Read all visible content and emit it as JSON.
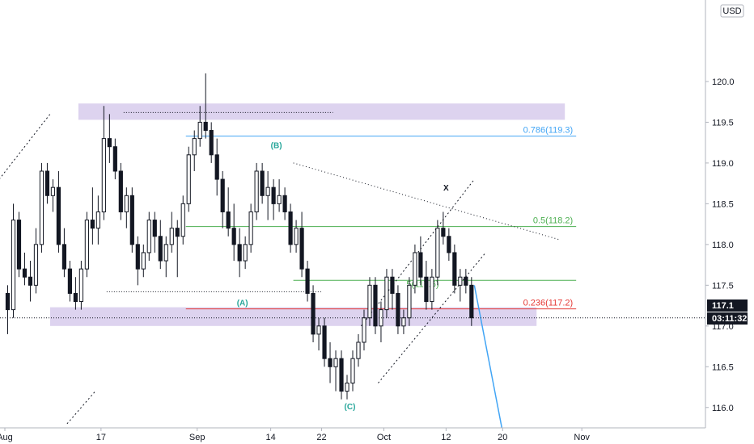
{
  "chart_data": {
    "type": "candlestick",
    "currency": "USD",
    "ylim": [
      115.75,
      121.0
    ],
    "xlim": [
      0,
      123
    ],
    "y_ticks": [
      "120.0",
      "119.5",
      "119.0",
      "118.5",
      "118.0",
      "117.5",
      "117.0",
      "116.5",
      "116.0"
    ],
    "y_tick_values": [
      120.0,
      119.5,
      119.0,
      118.5,
      118.0,
      117.5,
      117.0,
      116.5,
      116.0
    ],
    "x_ticks": [
      {
        "label": "Aug",
        "x": 0
      },
      {
        "label": "17",
        "x": 17
      },
      {
        "label": "Sep",
        "x": 34
      },
      {
        "label": "14",
        "x": 47
      },
      {
        "label": "22",
        "x": 56
      },
      {
        "label": "Oct",
        "x": 67
      },
      {
        "label": "12",
        "x": 78
      },
      {
        "label": "20",
        "x": 88
      },
      {
        "label": "Nov",
        "x": 102
      }
    ],
    "current_price": "117.1",
    "countdown": "03:11:32",
    "fib_levels": [
      {
        "label": "0.786(119.3)",
        "value": 119.33,
        "color": "#42a5f5"
      },
      {
        "label": "0.5(118.2)",
        "value": 118.22,
        "color": "#4caf50"
      },
      {
        "label": "0.236(117.2)",
        "value": 117.21,
        "color": "#e53935"
      }
    ],
    "mid_fib_label": "5(117.6)",
    "mid_fib_value": 117.56,
    "wave_labels": [
      {
        "label": "(B)",
        "x": 48,
        "y": 119.18
      },
      {
        "label": "(A)",
        "x": 42,
        "y": 117.25
      },
      {
        "label": "(C)",
        "x": 61,
        "y": 115.98
      },
      {
        "label": "X",
        "x": 78,
        "y": 118.66
      }
    ],
    "zones": [
      {
        "x0": 13,
        "x1": 99,
        "y0": 119.53,
        "y1": 119.73
      },
      {
        "x0": 8,
        "x1": 94,
        "y0": 117.0,
        "y1": 117.23
      }
    ],
    "projection": {
      "x0": 83,
      "y0": 117.5,
      "x1": 88,
      "y1": 115.7
    },
    "candles": [
      [
        117.4,
        117.5,
        116.9,
        117.2
      ],
      [
        117.2,
        118.5,
        117.1,
        118.3
      ],
      [
        118.3,
        118.4,
        117.6,
        117.7
      ],
      [
        117.7,
        117.9,
        117.5,
        117.6
      ],
      [
        117.6,
        117.8,
        117.3,
        117.5
      ],
      [
        117.5,
        118.2,
        117.4,
        118.0
      ],
      [
        118.0,
        119.0,
        117.9,
        118.9
      ],
      [
        118.9,
        119.0,
        118.5,
        118.6
      ],
      [
        118.6,
        118.8,
        118.4,
        118.7
      ],
      [
        118.7,
        118.9,
        117.9,
        118.0
      ],
      [
        118.0,
        118.2,
        117.6,
        117.7
      ],
      [
        117.7,
        117.8,
        117.3,
        117.4
      ],
      [
        117.4,
        117.6,
        117.2,
        117.3
      ],
      [
        117.3,
        117.8,
        117.2,
        117.7
      ],
      [
        117.7,
        118.4,
        117.6,
        118.3
      ],
      [
        118.3,
        118.7,
        118.0,
        118.2
      ],
      [
        118.2,
        118.6,
        118.0,
        118.4
      ],
      [
        118.4,
        119.7,
        118.3,
        119.3
      ],
      [
        119.3,
        119.6,
        119.0,
        119.2
      ],
      [
        119.2,
        119.3,
        118.8,
        118.9
      ],
      [
        118.9,
        119.0,
        118.3,
        118.4
      ],
      [
        118.4,
        118.7,
        118.2,
        118.6
      ],
      [
        118.6,
        118.7,
        117.9,
        118.0
      ],
      [
        118.0,
        118.1,
        117.5,
        117.7
      ],
      [
        117.7,
        118.0,
        117.6,
        117.9
      ],
      [
        117.9,
        118.4,
        117.8,
        118.3
      ],
      [
        118.3,
        118.4,
        117.9,
        118.1
      ],
      [
        118.1,
        118.3,
        117.7,
        117.8
      ],
      [
        117.8,
        118.1,
        117.6,
        118.0
      ],
      [
        118.0,
        118.4,
        117.9,
        118.2
      ],
      [
        118.2,
        118.3,
        117.6,
        118.1
      ],
      [
        118.1,
        118.6,
        118.0,
        118.5
      ],
      [
        118.5,
        119.2,
        118.4,
        119.1
      ],
      [
        119.1,
        119.4,
        118.9,
        119.3
      ],
      [
        119.3,
        119.7,
        119.2,
        119.5
      ],
      [
        119.5,
        120.1,
        119.3,
        119.4
      ],
      [
        119.4,
        119.5,
        119.0,
        119.1
      ],
      [
        119.1,
        119.3,
        118.6,
        118.8
      ],
      [
        118.8,
        118.9,
        118.2,
        118.4
      ],
      [
        118.4,
        118.7,
        118.1,
        118.2
      ],
      [
        118.2,
        118.5,
        117.8,
        118.0
      ],
      [
        118.0,
        118.2,
        117.6,
        117.8
      ],
      [
        117.8,
        118.1,
        117.7,
        118.0
      ],
      [
        118.0,
        118.5,
        117.9,
        118.4
      ],
      [
        118.4,
        119.0,
        118.3,
        118.9
      ],
      [
        118.9,
        119.0,
        118.5,
        118.6
      ],
      [
        118.6,
        118.9,
        118.3,
        118.7
      ],
      [
        118.7,
        118.8,
        118.3,
        118.5
      ],
      [
        118.5,
        118.8,
        118.4,
        118.6
      ],
      [
        118.6,
        118.7,
        118.3,
        118.4
      ],
      [
        118.4,
        118.5,
        117.9,
        118.0
      ],
      [
        118.0,
        118.3,
        117.9,
        118.2
      ],
      [
        118.2,
        118.4,
        117.6,
        117.7
      ],
      [
        117.7,
        117.8,
        117.3,
        117.4
      ],
      [
        117.4,
        117.5,
        116.8,
        116.9
      ],
      [
        116.9,
        117.1,
        116.7,
        117.0
      ],
      [
        117.0,
        117.1,
        116.5,
        116.6
      ],
      [
        116.6,
        116.8,
        116.3,
        116.5
      ],
      [
        116.5,
        116.7,
        116.2,
        116.6
      ],
      [
        116.6,
        116.7,
        116.1,
        116.2
      ],
      [
        116.2,
        116.4,
        116.1,
        116.3
      ],
      [
        116.3,
        116.7,
        116.2,
        116.6
      ],
      [
        116.6,
        116.9,
        116.5,
        116.8
      ],
      [
        116.8,
        117.2,
        116.7,
        117.1
      ],
      [
        117.1,
        117.6,
        117.0,
        117.5
      ],
      [
        117.5,
        117.6,
        116.9,
        117.0
      ],
      [
        117.0,
        117.3,
        116.8,
        117.2
      ],
      [
        117.2,
        117.7,
        117.1,
        117.6
      ],
      [
        117.6,
        117.7,
        117.2,
        117.4
      ],
      [
        117.4,
        117.5,
        116.9,
        117.0
      ],
      [
        117.0,
        117.2,
        116.9,
        117.1
      ],
      [
        117.1,
        117.6,
        117.0,
        117.5
      ],
      [
        117.5,
        118.0,
        117.4,
        117.9
      ],
      [
        117.9,
        118.1,
        117.5,
        117.6
      ],
      [
        117.6,
        117.8,
        117.2,
        117.3
      ],
      [
        117.3,
        117.7,
        117.2,
        117.6
      ],
      [
        117.6,
        118.3,
        117.5,
        118.2
      ],
      [
        118.2,
        118.4,
        118.0,
        118.1
      ],
      [
        118.1,
        118.2,
        117.8,
        117.9
      ],
      [
        117.9,
        118.0,
        117.4,
        117.5
      ],
      [
        117.5,
        117.7,
        117.3,
        117.6
      ],
      [
        117.6,
        117.7,
        117.4,
        117.5
      ],
      [
        117.5,
        117.6,
        117.0,
        117.1
      ]
    ]
  }
}
